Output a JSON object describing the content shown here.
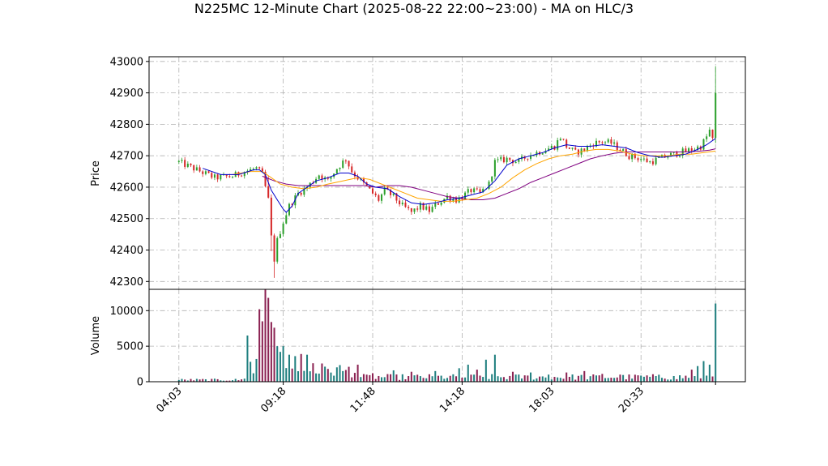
{
  "chart_data": {
    "type": "candlestick",
    "title": "N225MC 12-Minute Chart (2025-08-22 22:00~23:00) - MA on HLC/3",
    "x_ticks": [
      "04:03",
      "09:18",
      "11:48",
      "14:18",
      "18:03",
      "20:33",
      ""
    ],
    "x_tick_index": [
      0,
      35,
      65,
      95,
      125,
      155,
      180
    ],
    "x_range": [
      -10,
      190
    ],
    "price_panel": {
      "ylabel": "Price",
      "ylim": [
        42275,
        43015
      ],
      "yticks": [
        42300,
        42400,
        42500,
        42600,
        42700,
        42800,
        42900,
        43000
      ]
    },
    "volume_panel": {
      "ylabel": "Volume",
      "ylim": [
        0,
        13000
      ],
      "yticks": [
        0,
        5000,
        10000
      ]
    },
    "colors": {
      "up": "#2ca02c",
      "down": "#d62728",
      "ma_fast": "#0000cc",
      "ma_mid": "#ffa500",
      "ma_slow": "#800080",
      "vol_up": "#1f7f7f",
      "vol_down": "#8b2252"
    },
    "close_path": [
      [
        0,
        42680
      ],
      [
        6,
        42655
      ],
      [
        12,
        42630
      ],
      [
        18,
        42635
      ],
      [
        22,
        42650
      ],
      [
        26,
        42660
      ],
      [
        28,
        42640
      ],
      [
        29,
        42600
      ],
      [
        30,
        42560
      ],
      [
        31,
        42440
      ],
      [
        32,
        42370
      ],
      [
        33,
        42430
      ],
      [
        35,
        42490
      ],
      [
        37,
        42540
      ],
      [
        40,
        42580
      ],
      [
        43,
        42600
      ],
      [
        47,
        42640
      ],
      [
        50,
        42620
      ],
      [
        53,
        42660
      ],
      [
        56,
        42690
      ],
      [
        58,
        42650
      ],
      [
        61,
        42620
      ],
      [
        63,
        42600
      ],
      [
        65,
        42580
      ],
      [
        67,
        42560
      ],
      [
        69,
        42590
      ],
      [
        72,
        42570
      ],
      [
        75,
        42540
      ],
      [
        78,
        42520
      ],
      [
        81,
        42540
      ],
      [
        84,
        42525
      ],
      [
        87,
        42550
      ],
      [
        90,
        42570
      ],
      [
        93,
        42560
      ],
      [
        95,
        42570
      ],
      [
        98,
        42590
      ],
      [
        101,
        42580
      ],
      [
        104,
        42610
      ],
      [
        106,
        42680
      ],
      [
        110,
        42690
      ],
      [
        114,
        42680
      ],
      [
        117,
        42700
      ],
      [
        120,
        42710
      ],
      [
        123,
        42720
      ],
      [
        126,
        42730
      ],
      [
        128,
        42760
      ],
      [
        130,
        42730
      ],
      [
        133,
        42710
      ],
      [
        136,
        42720
      ],
      [
        139,
        42740
      ],
      [
        142,
        42745
      ],
      [
        145,
        42740
      ],
      [
        148,
        42720
      ],
      [
        151,
        42700
      ],
      [
        155,
        42690
      ],
      [
        158,
        42680
      ],
      [
        161,
        42690
      ],
      [
        164,
        42700
      ],
      [
        168,
        42710
      ],
      [
        172,
        42720
      ],
      [
        175,
        42730
      ],
      [
        177,
        42760
      ],
      [
        178,
        42780
      ],
      [
        179,
        42750
      ],
      [
        180,
        42820
      ]
    ],
    "volume_spikes": [
      [
        23,
        6500
      ],
      [
        24,
        2800
      ],
      [
        26,
        3200
      ],
      [
        27,
        10200
      ],
      [
        28,
        8500
      ],
      [
        29,
        13000
      ],
      [
        30,
        11800
      ],
      [
        31,
        8400
      ],
      [
        32,
        7600
      ],
      [
        33,
        5000
      ],
      [
        34,
        4200
      ],
      [
        35,
        5000
      ],
      [
        37,
        3800
      ],
      [
        39,
        3600
      ],
      [
        41,
        3900
      ],
      [
        43,
        3800
      ],
      [
        45,
        2600
      ],
      [
        50,
        1800
      ],
      [
        55,
        1500
      ],
      [
        60,
        2400
      ],
      [
        65,
        1200
      ],
      [
        72,
        1600
      ],
      [
        78,
        1400
      ],
      [
        86,
        1500
      ],
      [
        94,
        1900
      ],
      [
        97,
        2400
      ],
      [
        100,
        1700
      ],
      [
        103,
        3100
      ],
      [
        106,
        3800
      ],
      [
        112,
        1400
      ],
      [
        118,
        1300
      ],
      [
        124,
        1000
      ],
      [
        130,
        1300
      ],
      [
        136,
        1500
      ],
      [
        142,
        1100
      ],
      [
        148,
        1000
      ],
      [
        154,
        900
      ],
      [
        160,
        800
      ],
      [
        166,
        800
      ],
      [
        172,
        1700
      ],
      [
        174,
        2200
      ],
      [
        176,
        2900
      ],
      [
        178,
        2400
      ],
      [
        180,
        11000
      ]
    ],
    "volume_base": 600,
    "ma_fast": [
      [
        8,
        42660
      ],
      [
        14,
        42640
      ],
      [
        20,
        42640
      ],
      [
        25,
        42655
      ],
      [
        27,
        42655
      ],
      [
        29,
        42640
      ],
      [
        31,
        42590
      ],
      [
        33,
        42560
      ],
      [
        35,
        42530
      ],
      [
        36,
        42520
      ],
      [
        38,
        42540
      ],
      [
        40,
        42580
      ],
      [
        43,
        42600
      ],
      [
        46,
        42620
      ],
      [
        50,
        42630
      ],
      [
        54,
        42645
      ],
      [
        57,
        42645
      ],
      [
        60,
        42635
      ],
      [
        63,
        42610
      ],
      [
        66,
        42600
      ],
      [
        70,
        42595
      ],
      [
        74,
        42570
      ],
      [
        78,
        42550
      ],
      [
        82,
        42545
      ],
      [
        86,
        42550
      ],
      [
        90,
        42560
      ],
      [
        94,
        42565
      ],
      [
        98,
        42575
      ],
      [
        102,
        42585
      ],
      [
        106,
        42620
      ],
      [
        110,
        42670
      ],
      [
        114,
        42690
      ],
      [
        118,
        42700
      ],
      [
        122,
        42710
      ],
      [
        126,
        42725
      ],
      [
        130,
        42735
      ],
      [
        134,
        42730
      ],
      [
        138,
        42730
      ],
      [
        142,
        42735
      ],
      [
        146,
        42730
      ],
      [
        150,
        42725
      ],
      [
        154,
        42710
      ],
      [
        158,
        42700
      ],
      [
        162,
        42695
      ],
      [
        166,
        42700
      ],
      [
        170,
        42705
      ],
      [
        174,
        42720
      ],
      [
        177,
        42735
      ],
      [
        180,
        42755
      ]
    ],
    "ma_mid": [
      [
        18,
        42640
      ],
      [
        24,
        42650
      ],
      [
        28,
        42650
      ],
      [
        31,
        42630
      ],
      [
        34,
        42610
      ],
      [
        38,
        42600
      ],
      [
        42,
        42595
      ],
      [
        46,
        42600
      ],
      [
        50,
        42610
      ],
      [
        55,
        42620
      ],
      [
        60,
        42630
      ],
      [
        64,
        42625
      ],
      [
        68,
        42610
      ],
      [
        72,
        42595
      ],
      [
        76,
        42580
      ],
      [
        80,
        42565
      ],
      [
        84,
        42560
      ],
      [
        88,
        42555
      ],
      [
        92,
        42555
      ],
      [
        96,
        42560
      ],
      [
        100,
        42565
      ],
      [
        104,
        42580
      ],
      [
        108,
        42600
      ],
      [
        112,
        42630
      ],
      [
        116,
        42655
      ],
      [
        120,
        42675
      ],
      [
        124,
        42690
      ],
      [
        128,
        42700
      ],
      [
        132,
        42705
      ],
      [
        136,
        42715
      ],
      [
        140,
        42720
      ],
      [
        144,
        42720
      ],
      [
        148,
        42715
      ],
      [
        152,
        42705
      ],
      [
        156,
        42700
      ],
      [
        160,
        42700
      ],
      [
        164,
        42700
      ],
      [
        168,
        42705
      ],
      [
        172,
        42705
      ],
      [
        176,
        42710
      ],
      [
        180,
        42715
      ]
    ],
    "ma_slow": [
      [
        28,
        42635
      ],
      [
        32,
        42620
      ],
      [
        36,
        42610
      ],
      [
        40,
        42605
      ],
      [
        46,
        42605
      ],
      [
        52,
        42605
      ],
      [
        58,
        42605
      ],
      [
        62,
        42605
      ],
      [
        66,
        42600
      ],
      [
        70,
        42605
      ],
      [
        74,
        42605
      ],
      [
        78,
        42600
      ],
      [
        82,
        42590
      ],
      [
        86,
        42580
      ],
      [
        90,
        42570
      ],
      [
        94,
        42565
      ],
      [
        98,
        42560
      ],
      [
        102,
        42560
      ],
      [
        106,
        42565
      ],
      [
        110,
        42580
      ],
      [
        114,
        42595
      ],
      [
        118,
        42615
      ],
      [
        122,
        42630
      ],
      [
        126,
        42645
      ],
      [
        130,
        42660
      ],
      [
        134,
        42675
      ],
      [
        138,
        42690
      ],
      [
        142,
        42700
      ],
      [
        146,
        42708
      ],
      [
        150,
        42712
      ],
      [
        154,
        42712
      ],
      [
        158,
        42712
      ],
      [
        162,
        42712
      ],
      [
        166,
        42712
      ],
      [
        170,
        42712
      ],
      [
        174,
        42714
      ],
      [
        178,
        42718
      ],
      [
        180,
        42722
      ]
    ]
  }
}
